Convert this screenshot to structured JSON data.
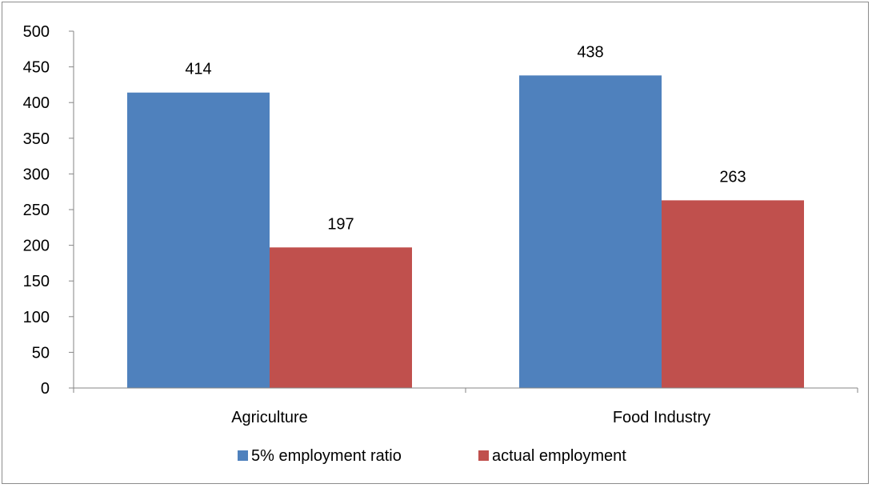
{
  "chart_data": {
    "type": "bar",
    "categories": [
      "Agriculture",
      "Food Industry"
    ],
    "series": [
      {
        "name": "5% employment ratio",
        "values": [
          414,
          438
        ],
        "color": "#4F81BD"
      },
      {
        "name": "actual employment",
        "values": [
          197,
          263
        ],
        "color": "#C0504D"
      }
    ],
    "ylim": [
      0,
      500
    ],
    "yticks": [
      0,
      50,
      100,
      150,
      200,
      250,
      300,
      350,
      400,
      450,
      500
    ],
    "title": "",
    "xlabel": "",
    "ylabel": "",
    "grid": false,
    "data_labels": true,
    "legend_position": "bottom"
  }
}
